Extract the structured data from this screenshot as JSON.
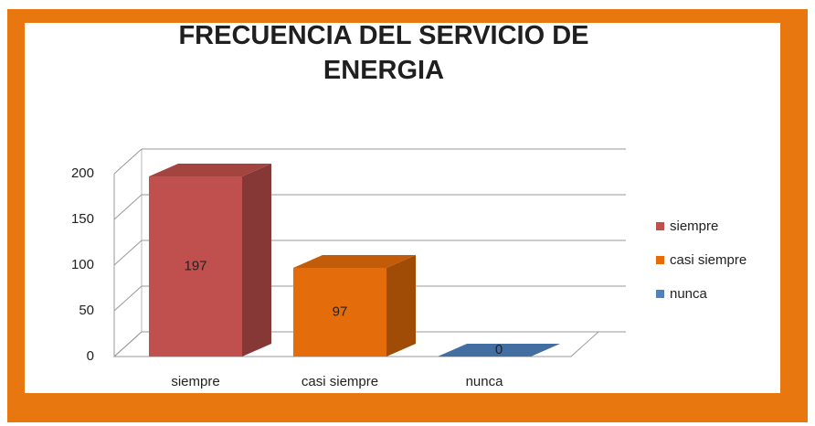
{
  "chart_data": {
    "type": "bar3d",
    "title": "FRECUENCIA DEL SERVICIO DE ENERGIA",
    "categories": [
      "siempre",
      "casi siempre",
      "nunca"
    ],
    "values": [
      197,
      97,
      0
    ],
    "colors": [
      "#c0504d",
      "#e46c0a",
      "#4f81bd"
    ],
    "ylim": [
      0,
      200
    ],
    "yticks": [
      0,
      50,
      100,
      150,
      200
    ],
    "grid": true,
    "legend": "right"
  }
}
